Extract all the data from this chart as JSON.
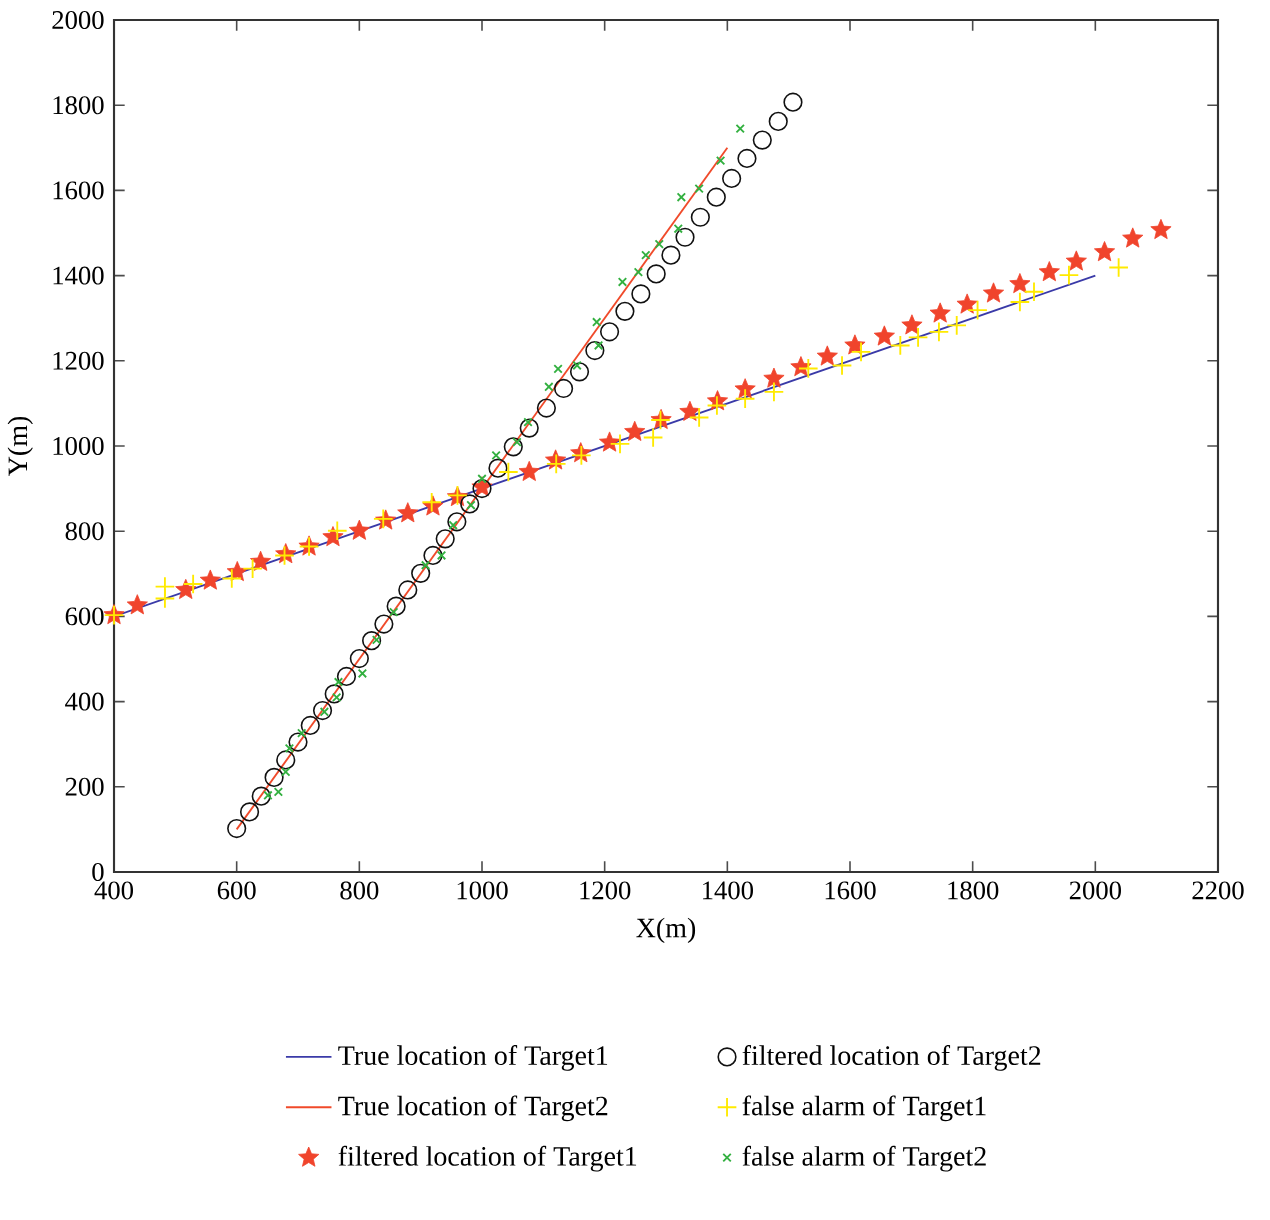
{
  "chart_data": {
    "type": "scatter",
    "xlabel": "X(m)",
    "ylabel": "Y(m)",
    "xlim": [
      400,
      2200
    ],
    "ylim": [
      0,
      2000
    ],
    "xticks": [
      400,
      600,
      800,
      1000,
      1200,
      1400,
      1600,
      1800,
      2000,
      2200
    ],
    "yticks": [
      0,
      200,
      400,
      600,
      800,
      1000,
      1200,
      1400,
      1600,
      1800,
      2000
    ],
    "legend": "bottom",
    "series": [
      {
        "name": "True location of Target1",
        "type": "line",
        "color": "#3a3aa8",
        "x": [
          400,
          2000
        ],
        "values": [
          600,
          1400
        ]
      },
      {
        "name": "True location of Target2",
        "type": "line",
        "color": "#f04a2a",
        "x": [
          600,
          1400
        ],
        "values": [
          100,
          1700
        ]
      },
      {
        "name": "filtered location of Target1",
        "color": "#f0442c",
        "marker": "star",
        "x": [
          400,
          438,
          517,
          557,
          601,
          639,
          680,
          718,
          757,
          800,
          843,
          879,
          920,
          960,
          1000,
          1077,
          1120,
          1161,
          1208,
          1249,
          1292,
          1339,
          1384,
          1429,
          1476,
          1520,
          1563,
          1608,
          1656,
          1701,
          1747,
          1791,
          1834,
          1877,
          1925,
          1969,
          2015,
          2061,
          2107
        ],
        "values": [
          603,
          626,
          662,
          684,
          704,
          728,
          746,
          764,
          786,
          801,
          825,
          842,
          858,
          880,
          903,
          939,
          966,
          983,
          1008,
          1033,
          1061,
          1080,
          1105,
          1133,
          1158,
          1185,
          1210,
          1236,
          1257,
          1283,
          1311,
          1332,
          1358,
          1380,
          1408,
          1433,
          1455,
          1487,
          1507
        ]
      },
      {
        "name": "filtered location of Target2",
        "color": "#111111",
        "marker": "circle",
        "x": [
          600,
          621,
          640,
          661,
          680,
          700,
          720,
          740,
          759,
          779,
          800,
          820,
          840,
          860,
          879,
          900,
          920,
          940,
          959,
          980,
          1000,
          1026,
          1051,
          1077,
          1105,
          1133,
          1159,
          1184,
          1208,
          1233,
          1259,
          1284,
          1308,
          1331,
          1356,
          1382,
          1407,
          1432,
          1457,
          1483,
          1507
        ],
        "values": [
          102,
          141,
          178,
          222,
          263,
          305,
          344,
          379,
          418,
          459,
          501,
          543,
          582,
          624,
          662,
          701,
          743,
          782,
          822,
          864,
          900,
          948,
          998,
          1042,
          1089,
          1135,
          1174,
          1224,
          1268,
          1316,
          1357,
          1404,
          1448,
          1490,
          1537,
          1584,
          1628,
          1675,
          1718,
          1762,
          1807
        ]
      },
      {
        "name": "false alarm of Target1",
        "color": "#ffea00",
        "marker": "plus",
        "x": [
          400,
          483,
          483,
          529,
          592,
          626,
          678,
          718,
          764,
          839,
          918,
          960,
          1043,
          1121,
          1162,
          1225,
          1279,
          1291,
          1354,
          1383,
          1429,
          1476,
          1532,
          1587,
          1618,
          1682,
          1711,
          1745,
          1774,
          1808,
          1877,
          1900,
          1957,
          2038
        ],
        "values": [
          603,
          670,
          642,
          676,
          689,
          712,
          743,
          764,
          801,
          829,
          868,
          884,
          939,
          958,
          978,
          1005,
          1020,
          1061,
          1067,
          1095,
          1111,
          1127,
          1182,
          1189,
          1221,
          1236,
          1255,
          1268,
          1283,
          1319,
          1338,
          1362,
          1401,
          1419
        ]
      },
      {
        "name": "false alarm of Target2",
        "color": "#33b040",
        "marker": "cross",
        "x": [
          651,
          668,
          680,
          686,
          706,
          743,
          763,
          766,
          805,
          828,
          856,
          908,
          934,
          953,
          982,
          1000,
          1023,
          1057,
          1075,
          1109,
          1124,
          1155,
          1187,
          1190,
          1229,
          1255,
          1267,
          1289,
          1320,
          1325,
          1354,
          1389,
          1421
        ],
        "values": [
          180,
          188,
          235,
          290,
          326,
          376,
          410,
          446,
          466,
          545,
          610,
          720,
          743,
          814,
          861,
          923,
          978,
          1009,
          1056,
          1139,
          1181,
          1189,
          1291,
          1236,
          1385,
          1408,
          1448,
          1474,
          1510,
          1584,
          1604,
          1670,
          1745
        ]
      }
    ]
  }
}
